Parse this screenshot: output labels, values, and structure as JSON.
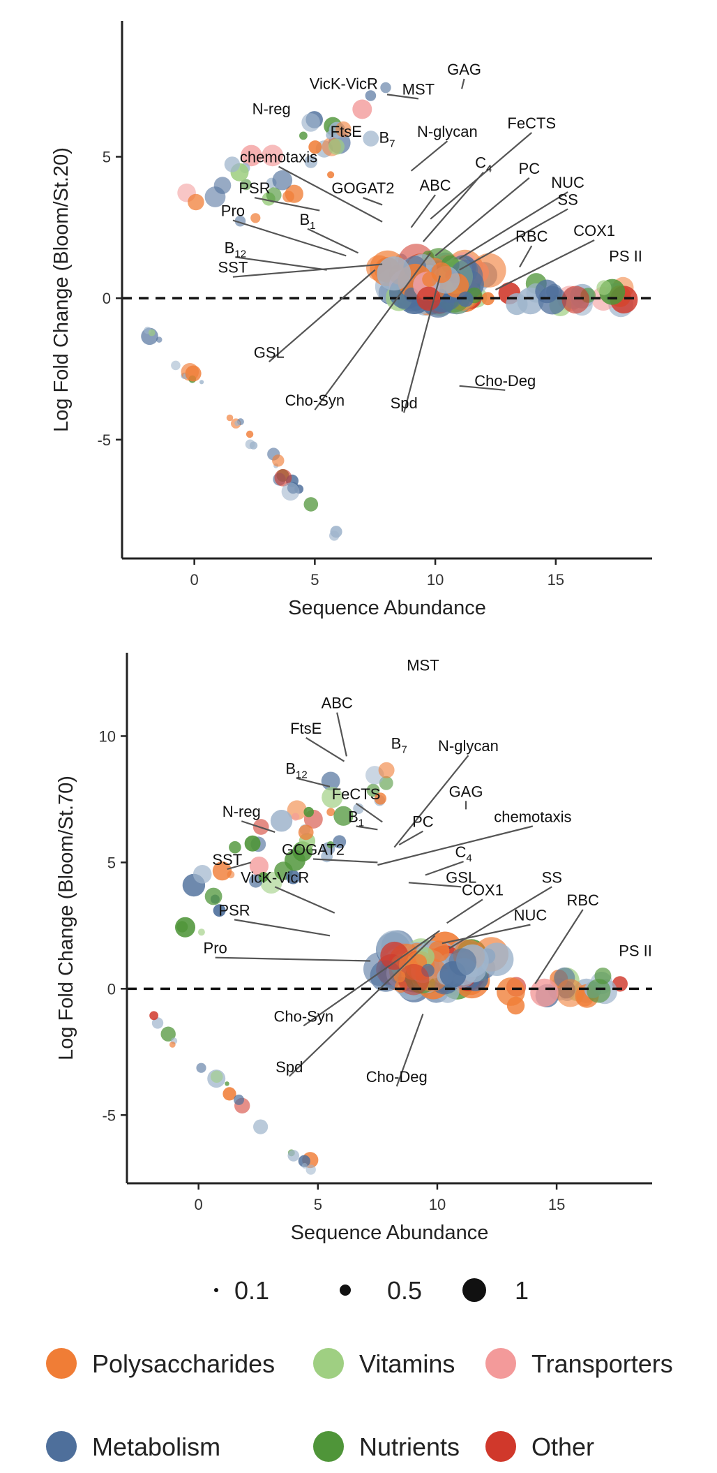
{
  "colors": {
    "Polysaccharides": "#f07d36",
    "Vitamins": "#9fcf82",
    "Transporters": "#f39a9a",
    "Metabolism": "#4e6f9b",
    "Nutrients": "#4f9539",
    "Other": "#d0382b",
    "Metabolism_light": "#9fb5cc"
  },
  "chart_data": [
    {
      "type": "scatter",
      "xlabel": "Sequence Abundance",
      "ylabel": "Log Fold Change (Bloom/St.20)",
      "xlim": [
        -3,
        19
      ],
      "ylim": [
        -9.2,
        9.8
      ],
      "xticks": [
        0,
        5,
        10,
        15
      ],
      "yticks": [
        5,
        0,
        -5
      ],
      "reference_line": 0,
      "labels": [
        {
          "text": "GAG",
          "x": 11.2,
          "y": 7.9,
          "px": 11.1,
          "py": 7.4
        },
        {
          "text": "VicK-VicR",
          "x": 6.2,
          "y": 7.4
        },
        {
          "text": "MST",
          "x": 9.3,
          "y": 7.2,
          "px": 8.0,
          "py": 7.2
        },
        {
          "text": "N-reg",
          "x": 3.2,
          "y": 6.5
        },
        {
          "text": "FtsE",
          "x": 6.3,
          "y": 5.7
        },
        {
          "text": "B",
          "sub": "7",
          "x": 8.0,
          "y": 5.5
        },
        {
          "text": "N-glycan",
          "x": 10.5,
          "y": 5.7,
          "px": 9.0,
          "py": 4.5
        },
        {
          "text": "FeCTS",
          "x": 14.0,
          "y": 6.0,
          "px": 9.8,
          "py": 2.8
        },
        {
          "text": "chemotaxis",
          "x": 3.5,
          "y": 4.8,
          "px": 7.8,
          "py": 2.7
        },
        {
          "text": "C",
          "sub": "4",
          "x": 12.0,
          "y": 4.6,
          "px": 9.5,
          "py": 2.0
        },
        {
          "text": "PSR",
          "x": 2.5,
          "y": 3.7,
          "px": 5.2,
          "py": 3.1
        },
        {
          "text": "GOGAT2",
          "x": 7.0,
          "y": 3.7,
          "px": 7.8,
          "py": 3.3
        },
        {
          "text": "ABC",
          "x": 10.0,
          "y": 3.8,
          "px": 9.0,
          "py": 2.5
        },
        {
          "text": "PC",
          "x": 13.9,
          "y": 4.4,
          "px": 10.0,
          "py": 1.5
        },
        {
          "text": "NUC",
          "x": 15.5,
          "y": 3.9,
          "px": 11.0,
          "py": 1.4
        },
        {
          "text": "Pro",
          "x": 1.6,
          "y": 2.9,
          "px": 6.3,
          "py": 1.5
        },
        {
          "text": "B",
          "sub": "1",
          "x": 4.7,
          "y": 2.6,
          "px": 6.8,
          "py": 1.6
        },
        {
          "text": "SS",
          "x": 15.5,
          "y": 3.3,
          "px": 11.0,
          "py": 1.0
        },
        {
          "text": "RBC",
          "x": 14.0,
          "y": 2.0,
          "px": 13.5,
          "py": 1.1
        },
        {
          "text": "COX1",
          "x": 16.6,
          "y": 2.2,
          "px": 12.5,
          "py": 0.3
        },
        {
          "text": "PS II",
          "x": 17.9,
          "y": 1.3
        },
        {
          "text": "B",
          "sub": "12",
          "x": 1.7,
          "y": 1.6,
          "px": 5.5,
          "py": 1.0
        },
        {
          "text": "SST",
          "x": 1.6,
          "y": 0.9,
          "px": 7.8,
          "py": 1.2
        },
        {
          "text": "GSL",
          "x": 3.1,
          "y": -2.1,
          "px": 7.5,
          "py": 1.0
        },
        {
          "text": "Cho-Syn",
          "x": 5.0,
          "y": -3.8,
          "px": 9.8,
          "py": 1.6
        },
        {
          "text": "Spd",
          "x": 8.7,
          "y": -3.9,
          "px": 10.2,
          "py": 0.8
        },
        {
          "text": "Cho-Deg",
          "x": 12.9,
          "y": -3.1,
          "px": 11.0,
          "py": -3.1
        }
      ]
    },
    {
      "type": "scatter",
      "xlabel": "Sequence Abundance",
      "ylabel": "Log Fold Change (Bloom/St.70)",
      "xlim": [
        -3,
        19
      ],
      "ylim": [
        -7.7,
        13.3
      ],
      "xticks": [
        0,
        5,
        10,
        15
      ],
      "yticks": [
        10,
        5,
        0,
        -5
      ],
      "reference_line": 0,
      "labels": [
        {
          "text": "MST",
          "x": 9.4,
          "y": 12.6
        },
        {
          "text": "ABC",
          "x": 5.8,
          "y": 11.1,
          "px": 6.2,
          "py": 9.2
        },
        {
          "text": "FtsE",
          "x": 4.5,
          "y": 10.1,
          "px": 6.1,
          "py": 9.0
        },
        {
          "text": "B",
          "sub": "7",
          "x": 8.4,
          "y": 9.5
        },
        {
          "text": "N-glycan",
          "x": 11.3,
          "y": 9.4,
          "px": 8.2,
          "py": 5.6
        },
        {
          "text": "B",
          "sub": "12",
          "x": 4.1,
          "y": 8.5,
          "px": 5.5,
          "py": 8.0
        },
        {
          "text": "GAG",
          "x": 11.2,
          "y": 7.6,
          "px": 11.2,
          "py": 7.1
        },
        {
          "text": "FeCTS",
          "x": 6.6,
          "y": 7.5,
          "px": 7.7,
          "py": 6.6
        },
        {
          "text": "N-reg",
          "x": 1.8,
          "y": 6.8,
          "px": 3.2,
          "py": 6.2
        },
        {
          "text": "B",
          "sub": "1",
          "x": 6.6,
          "y": 6.6,
          "px": 7.5,
          "py": 6.3
        },
        {
          "text": "PC",
          "x": 9.4,
          "y": 6.4,
          "px": 8.4,
          "py": 5.7
        },
        {
          "text": "chemotaxis",
          "x": 14.0,
          "y": 6.6,
          "px": 7.5,
          "py": 4.9
        },
        {
          "text": "GOGAT2",
          "x": 4.8,
          "y": 5.3,
          "px": 7.5,
          "py": 5.0
        },
        {
          "text": "C",
          "sub": "4",
          "x": 11.1,
          "y": 5.2,
          "px": 9.5,
          "py": 4.5
        },
        {
          "text": "SST",
          "x": 1.2,
          "y": 4.9,
          "px": 2.2,
          "py": 5.0
        },
        {
          "text": "VicK-VicR",
          "x": 3.2,
          "y": 4.2,
          "px": 5.7,
          "py": 3.0
        },
        {
          "text": "GSL",
          "x": 11.0,
          "y": 4.2,
          "px": 8.8,
          "py": 4.2
        },
        {
          "text": "SS",
          "x": 14.8,
          "y": 4.2,
          "px": 10.5,
          "py": 1.6
        },
        {
          "text": "COX1",
          "x": 11.9,
          "y": 3.7,
          "px": 10.4,
          "py": 2.6
        },
        {
          "text": "RBC",
          "x": 16.1,
          "y": 3.3,
          "px": 14.1,
          "py": 0.2
        },
        {
          "text": "PSR",
          "x": 1.5,
          "y": 2.9,
          "px": 5.5,
          "py": 2.1
        },
        {
          "text": "NUC",
          "x": 13.9,
          "y": 2.7,
          "px": 10.2,
          "py": 1.8
        },
        {
          "text": "PS II",
          "x": 18.3,
          "y": 1.3
        },
        {
          "text": "Pro",
          "x": 0.7,
          "y": 1.4,
          "px": 7.2,
          "py": 1.1
        },
        {
          "text": "Cho-Syn",
          "x": 4.4,
          "y": -1.3,
          "px": 10.1,
          "py": 2.3
        },
        {
          "text": "Spd",
          "x": 3.8,
          "y": -3.3,
          "px": 9.9,
          "py": 2.1
        },
        {
          "text": "Cho-Deg",
          "x": 8.3,
          "y": -3.7,
          "px": 9.4,
          "py": -1.0
        }
      ]
    }
  ],
  "size_legend": [
    {
      "label": "0.1",
      "size": 0.1
    },
    {
      "label": "0.5",
      "size": 0.5
    },
    {
      "label": "1",
      "size": 1
    }
  ],
  "category_legend": [
    {
      "label": "Polysaccharides",
      "color": "#f07d36"
    },
    {
      "label": "Vitamins",
      "color": "#9fcf82"
    },
    {
      "label": "Transporters",
      "color": "#f39a9a"
    },
    {
      "label": "Metabolism",
      "color": "#4e6f9b"
    },
    {
      "label": "Nutrients",
      "color": "#4f9539"
    },
    {
      "label": "Other",
      "color": "#d0382b"
    }
  ]
}
